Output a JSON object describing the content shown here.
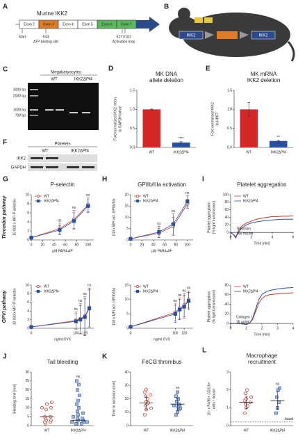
{
  "diagrams": {
    "A": {
      "panel": "A",
      "title": "Murine IKK2",
      "exons": [
        "Exon 2",
        "Exon 3",
        "Exon 4",
        "Exon 5",
        "Exon 6",
        "Exon 7"
      ],
      "start": "Start",
      "k44": "K44",
      "atp": "ATP binding site",
      "s177": "S177/181",
      "loop": "Activation loop"
    },
    "B": {
      "panel": "B",
      "labels": [
        "IKK2",
        "IKK2"
      ]
    },
    "C": {
      "panel": "C",
      "title": "Megakaryocytes",
      "lanes": [
        "WT",
        "IKK2ΔPf4"
      ],
      "ladder": [
        "3000 bp",
        "2000 bp",
        "1000 bp",
        "700 bp"
      ]
    },
    "F": {
      "panel": "F",
      "title": "Platelets",
      "lanes": [
        "WT",
        "IKK2ΔPf4"
      ],
      "rows": [
        "IKK2",
        "GAPDH"
      ]
    }
  },
  "chart_data": [
    {
      "type": "bar",
      "panel": "D",
      "title": [
        "MK DNA",
        "allele deletion"
      ],
      "ylabel": [
        "Fold normalized IKK2 intron",
        "to GAPDH intron"
      ],
      "categories": [
        "WT",
        "IKK2ΔPf4"
      ],
      "values": [
        1.0,
        0.13
      ],
      "errors": [
        0.01,
        0.02
      ],
      "colors": [
        "#d62728",
        "#2b4fa0"
      ],
      "sig": [
        null,
        "****"
      ],
      "ylim": [
        0,
        1.5
      ],
      "yticks": [
        {
          "value": 0,
          "label": "0.0"
        },
        {
          "value": 0.5,
          "label": "0.5"
        },
        {
          "value": 1,
          "label": "1.0"
        },
        {
          "value": 1.5,
          "label": "1.5"
        }
      ]
    },
    {
      "type": "bar",
      "panel": "E",
      "title": [
        "MK mRNA",
        "IKK2 deletion"
      ],
      "ylabel": [
        "Fold normalized IKK2",
        "to HPRT"
      ],
      "categories": [
        "WT",
        "IKK2ΔPf4"
      ],
      "values": [
        1.0,
        0.17
      ],
      "errors": [
        0.18,
        0.02
      ],
      "colors": [
        "#d62728",
        "#2b4fa0"
      ],
      "sig": [
        null,
        "**"
      ],
      "ylim": [
        0,
        1.5
      ],
      "yticks": [
        {
          "value": 0,
          "label": "0.0"
        },
        {
          "value": 0.5,
          "label": "0.5"
        },
        {
          "value": 1,
          "label": "1.0"
        },
        {
          "value": 1.5,
          "label": "1.5"
        }
      ]
    },
    {
      "type": "line",
      "panel": "G",
      "title": [
        "P-selectin"
      ],
      "pathway": "Thrombin pathway",
      "ylabel": [
        "10 000 x MFI P-selectin"
      ],
      "xlabel": "µM PAR4-AP",
      "x": [
        0,
        50,
        75,
        100
      ],
      "point_labels": [
        null,
        "ns",
        "ns",
        "ns"
      ],
      "series": [
        {
          "name": "WT",
          "color": "#c0392b",
          "marker": "circle",
          "values": [
            0.5,
            2.5,
            4.5,
            7.8
          ],
          "errors": [
            0.2,
            1.2,
            2.0,
            1.5
          ]
        },
        {
          "name": "IKK2ΔPf4",
          "color": "#2b4fa0",
          "marker": "square",
          "values": [
            0.5,
            2.2,
            4.2,
            7.5
          ],
          "errors": [
            0.2,
            1.0,
            1.8,
            1.4
          ]
        }
      ],
      "xlim": [
        0,
        110
      ],
      "xticks": [
        0,
        20,
        40,
        60,
        80,
        100
      ],
      "ylim": [
        0,
        10
      ],
      "yticks": [
        0,
        2,
        4,
        6,
        8,
        10
      ]
    },
    {
      "type": "line",
      "pathway": "GPVI pathway",
      "ylabel": [
        "10 000 x MFI P-selectin"
      ],
      "xlabel": "ng/ml CVX",
      "x": [
        0,
        100,
        110,
        120,
        130
      ],
      "point_labels": [
        null,
        "ns",
        "ns",
        "ns",
        "ns"
      ],
      "series": [
        {
          "name": "WT",
          "color": "#c0392b",
          "marker": "circle",
          "values": [
            0.3,
            1.8,
            2.2,
            2.8,
            4.8
          ],
          "errors": [
            0.2,
            2.0,
            3.5,
            4.5,
            4.5
          ]
        },
        {
          "name": "IKK2ΔPf4",
          "color": "#2b4fa0",
          "marker": "square",
          "values": [
            0.3,
            1.6,
            2.0,
            2.6,
            4.6
          ],
          "errors": [
            0.2,
            1.8,
            3.2,
            4.2,
            4.3
          ]
        }
      ],
      "xlim": [
        0,
        140
      ],
      "xticks": [
        0,
        100,
        120
      ],
      "ylim": [
        0,
        10
      ],
      "yticks": [
        0,
        2,
        4,
        6,
        8,
        10
      ]
    },
    {
      "type": "line",
      "panel": "H",
      "title": [
        "GPIIb/IIIa activation"
      ],
      "ylabel": [
        "100 x MFI act. GPIIb/IIIa"
      ],
      "xlabel": "µM PAR4-AP",
      "x": [
        0,
        50,
        75,
        100
      ],
      "point_labels": [
        null,
        "ns",
        "ns",
        "ns"
      ],
      "series": [
        {
          "name": "WT",
          "color": "#c0392b",
          "marker": "circle",
          "values": [
            0.5,
            3,
            6,
            16
          ],
          "errors": [
            0.3,
            2,
            4,
            2
          ]
        },
        {
          "name": "IKK2ΔPf4",
          "color": "#2b4fa0",
          "marker": "square",
          "values": [
            0.5,
            3.5,
            7,
            17
          ],
          "errors": [
            0.3,
            2.5,
            4.5,
            2.5
          ]
        }
      ],
      "xlim": [
        0,
        110
      ],
      "xticks": [
        0,
        20,
        40,
        60,
        80,
        100
      ],
      "ylim": [
        0,
        20
      ],
      "yticks": [
        0,
        5,
        10,
        15,
        20
      ]
    },
    {
      "type": "line",
      "ylabel": [
        "100 x MFI act. GPIIb/IIIa"
      ],
      "xlabel": "ng/ml CVX",
      "x": [
        0,
        100,
        110,
        120,
        130
      ],
      "point_labels": [
        null,
        "ns",
        "ns",
        "ns",
        "ns"
      ],
      "series": [
        {
          "name": "WT",
          "color": "#c0392b",
          "marker": "circle",
          "values": [
            0.5,
            5.5,
            7,
            8,
            10
          ],
          "errors": [
            0.3,
            3,
            3.5,
            4,
            3
          ]
        },
        {
          "name": "IKK2ΔPf4",
          "color": "#2b4fa0",
          "marker": "square",
          "values": [
            0.5,
            5,
            6.5,
            7.5,
            9.5
          ],
          "errors": [
            0.3,
            3,
            3.5,
            4,
            3
          ]
        }
      ],
      "xlim": [
        0,
        140
      ],
      "xticks": [
        0,
        100,
        120
      ],
      "ylim": [
        0,
        15
      ],
      "yticks": [
        0,
        5,
        10,
        15
      ]
    },
    {
      "type": "curve",
      "panel": "I",
      "title": [
        "Platelet aggregation"
      ],
      "ylabel": [
        "Platelet aggregation",
        "(% light transmission)"
      ],
      "xlabel": "Time [min]",
      "annotation": [
        "Thrombin",
        "165 mU/ml"
      ],
      "x": [
        0,
        0.25,
        0.5,
        0.75,
        1,
        1.5,
        2,
        2.5,
        3,
        3.5,
        4,
        4.5,
        5,
        5.5,
        6
      ],
      "series": [
        {
          "name": "WT",
          "color": "#c0392b",
          "values": [
            0,
            -5,
            -15,
            5,
            15,
            25,
            30,
            35,
            38,
            40,
            42,
            42,
            43,
            43,
            44
          ]
        },
        {
          "name": "IKK2ΔPf4",
          "color": "#2b4fa0",
          "values": [
            0,
            -5,
            -12,
            0,
            10,
            20,
            25,
            28,
            30,
            32,
            33,
            34,
            35,
            35,
            35
          ]
        }
      ],
      "xlim": [
        0,
        6
      ],
      "xticks": [
        0,
        2,
        4,
        6
      ],
      "ylim": [
        -20,
        100
      ],
      "yticks": [
        0,
        20,
        40,
        60,
        80,
        100
      ]
    },
    {
      "type": "curve",
      "ylabel": [
        "Platelet aggregation",
        "(% light transmission)"
      ],
      "xlabel": "Time [min]",
      "annotation": [
        "Collagen I",
        "18 µg/ml"
      ],
      "x": [
        0,
        0.5,
        1,
        1.2,
        1.4,
        1.6,
        1.8,
        2,
        2.2,
        2.5,
        3,
        3.5,
        4
      ],
      "series": [
        {
          "name": "WT",
          "color": "#c0392b",
          "values": [
            0,
            0,
            -2,
            0,
            8,
            25,
            42,
            52,
            57,
            60,
            62,
            63,
            64
          ]
        },
        {
          "name": "IKK2ΔPf4",
          "color": "#2b4fa0",
          "values": [
            0,
            0,
            -2,
            0,
            10,
            30,
            50,
            60,
            65,
            69,
            72,
            74,
            75
          ]
        }
      ],
      "xlim": [
        0,
        4
      ],
      "xticks": [
        0,
        1,
        2,
        3,
        4
      ],
      "ylim": [
        -10,
        80
      ],
      "yticks": [
        0,
        20,
        40,
        60,
        80
      ]
    },
    {
      "type": "dot",
      "panel": "J",
      "title": [
        "Tail bleeding"
      ],
      "ylabel": [
        "Bleeding time [min]"
      ],
      "groups": [
        {
          "name": "WT",
          "color": "#c0392b",
          "marker": "circle",
          "values": [
            1,
            2,
            2,
            3,
            3,
            4,
            5,
            5,
            9,
            10,
            10,
            12,
            13
          ],
          "center": 5
        },
        {
          "name": "IKK2ΔPf4",
          "color": "#2b4fa0",
          "marker": "square",
          "values": [
            1,
            1,
            1,
            2,
            2,
            2,
            3,
            3,
            4,
            4,
            5,
            6,
            7,
            8,
            10,
            12,
            14,
            17,
            20,
            23,
            25
          ],
          "center": 3,
          "sig": "ns"
        }
      ],
      "ylim": [
        0,
        30
      ],
      "yticks": [
        0,
        5,
        10,
        15,
        20,
        25,
        30
      ]
    },
    {
      "type": "dot",
      "panel": "K",
      "title": [
        "FeCl3 thrombus"
      ],
      "ylabel": [
        "Time to occlusion [min]"
      ],
      "groups": [
        {
          "name": "WT",
          "color": "#c0392b",
          "marker": "circle",
          "values": [
            8,
            12,
            13,
            15,
            16,
            17,
            18,
            20,
            22,
            23,
            25,
            27
          ],
          "center": 17,
          "sd": 5
        },
        {
          "name": "IKK2ΔPf4",
          "color": "#2b4fa0",
          "marker": "square",
          "values": [
            8,
            10,
            12,
            13,
            14,
            15,
            15,
            16,
            18,
            20,
            22,
            25
          ],
          "center": 16,
          "sd": 4.5,
          "sig": "ns"
        }
      ],
      "ylim": [
        0,
        40
      ],
      "yticks": [
        0,
        10,
        20,
        30,
        40
      ]
    },
    {
      "type": "dot",
      "panel": "L",
      "title": [
        "Macrophage",
        "recruitment"
      ],
      "ylabel": [
        "10⁵ x F4/80+ CD11b+",
        "cells / mouse"
      ],
      "groups": [
        {
          "name": "WT",
          "color": "#c0392b",
          "marker": "circle",
          "values": [
            0.7,
            1.0,
            1.1,
            1.2,
            1.3,
            1.4,
            1.5,
            1.6,
            1.8,
            2.0
          ],
          "center": 1.3,
          "sd": 0.35
        },
        {
          "name": "IKK2ΔPf4",
          "color": "#2b4fa0",
          "marker": "square",
          "values": [
            0.7,
            1.0,
            1.3,
            1.6,
            2.0,
            2.1
          ],
          "center": 1.4,
          "sd": 0.5,
          "sig": "ns"
        }
      ],
      "baseline": {
        "value": 0.2,
        "label": "basal"
      },
      "ylim": [
        0,
        3
      ],
      "yticks": [
        0,
        1,
        2,
        3
      ]
    }
  ]
}
